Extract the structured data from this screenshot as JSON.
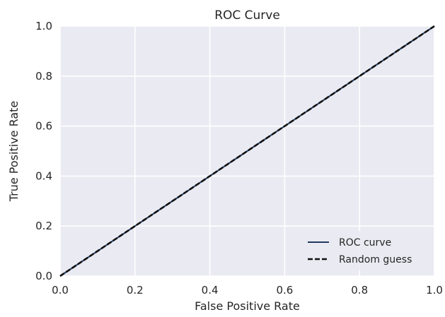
{
  "chart_data": {
    "type": "line",
    "title": "ROC Curve",
    "xlabel": "False Positive Rate",
    "ylabel": "True Positive Rate",
    "xlim": [
      0.0,
      1.0
    ],
    "ylim": [
      0.0,
      1.0
    ],
    "xticks": [
      0.0,
      0.2,
      0.4,
      0.6,
      0.8,
      1.0
    ],
    "yticks": [
      0.0,
      0.2,
      0.4,
      0.6,
      0.8,
      1.0
    ],
    "xtick_labels": [
      "0.0",
      "0.2",
      "0.4",
      "0.6",
      "0.8",
      "1.0"
    ],
    "ytick_labels": [
      "0.0",
      "0.2",
      "0.4",
      "0.6",
      "0.8",
      "1.0"
    ],
    "grid": true,
    "legend_position": "bottom-right",
    "background_color": "#eaeaf2",
    "series": [
      {
        "name": "ROC curve",
        "x": [
          0.0,
          1.0
        ],
        "y": [
          0.0,
          1.0
        ],
        "color": "#1f3a5f",
        "style": "solid"
      },
      {
        "name": "Random guess",
        "x": [
          0.0,
          1.0
        ],
        "y": [
          0.0,
          1.0
        ],
        "color": "#111111",
        "style": "dashed"
      }
    ]
  }
}
